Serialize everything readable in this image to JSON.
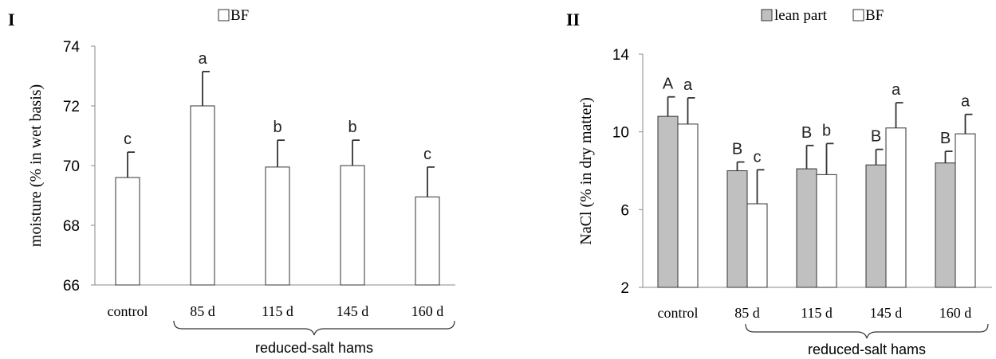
{
  "chart_data": [
    {
      "type": "bar",
      "panel_label": "I",
      "ylabel": "moisture (% in wet basis)",
      "ylim": [
        66,
        74
      ],
      "yticks": [
        66,
        68,
        70,
        72,
        74
      ],
      "categories": [
        "control",
        "85 d",
        "115 d",
        "145 d",
        "160 d"
      ],
      "group_label": "reduced-salt hams",
      "legend_placement": "top-center",
      "series": [
        {
          "name": "BF",
          "color": "#ffffff",
          "values": [
            69.6,
            72.0,
            69.95,
            70.0,
            68.95
          ],
          "errors": [
            0.85,
            1.15,
            0.9,
            0.85,
            1.0
          ],
          "letters": [
            "c",
            "a",
            "b",
            "b",
            "c"
          ]
        }
      ]
    },
    {
      "type": "bar",
      "panel_label": "II",
      "ylabel": "NaCl (% in dry matter)",
      "ylim": [
        2,
        14
      ],
      "yticks": [
        2,
        6,
        10,
        14
      ],
      "categories": [
        "control",
        "85 d",
        "115 d",
        "145 d",
        "160 d"
      ],
      "group_label": "reduced-salt hams",
      "legend_placement": "top-center",
      "series": [
        {
          "name": "lean part",
          "color": "#c0c0c0",
          "values": [
            10.8,
            8.0,
            8.1,
            8.3,
            8.4
          ],
          "errors": [
            1.0,
            0.45,
            1.2,
            0.8,
            0.6
          ],
          "letters": [
            "A",
            "B",
            "B",
            "B",
            "B"
          ]
        },
        {
          "name": "BF",
          "color": "#ffffff",
          "values": [
            10.4,
            6.3,
            7.8,
            10.2,
            9.9
          ],
          "errors": [
            1.35,
            1.75,
            1.6,
            1.3,
            1.0
          ],
          "letters": [
            "a",
            "c",
            "b",
            "a",
            "a"
          ]
        }
      ]
    }
  ]
}
